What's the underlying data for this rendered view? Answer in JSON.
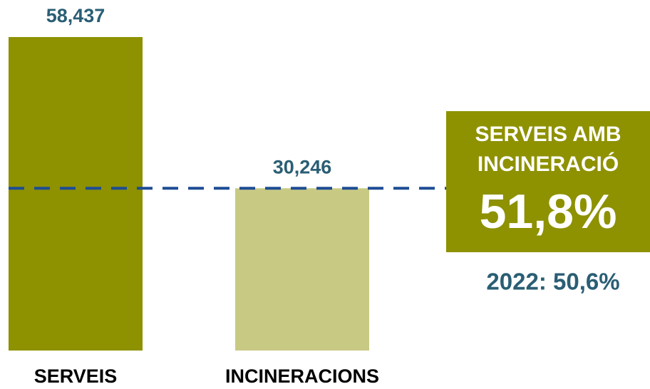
{
  "chart_data": {
    "type": "bar",
    "categories": [
      "SERVEIS",
      "INCINERACIONS"
    ],
    "values": [
      58437,
      30246
    ],
    "value_labels": [
      "58,437",
      "30,246"
    ],
    "colors": [
      "#8e9100",
      "#c8ca84"
    ],
    "reference_line_color": "#1e4d94",
    "annotation": {
      "title_lines": [
        "SERVEIS AMB",
        "INCINERACIÓ"
      ],
      "value": "51,8%",
      "previous": "2022: 50,6%",
      "color": "#8e9100"
    }
  }
}
